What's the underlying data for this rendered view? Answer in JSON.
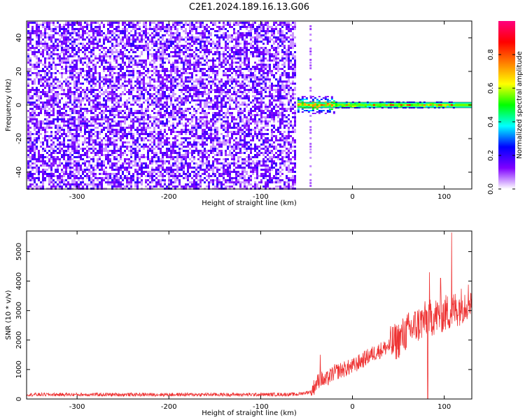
{
  "figure": {
    "title": "C2E1.2024.189.16.13.G06"
  },
  "chart_data": [
    {
      "type": "heatmap",
      "title": "",
      "xlabel": "Height of straight line (km)",
      "ylabel": "Frequency (Hz)",
      "xlim": [
        -355,
        130
      ],
      "ylim": [
        -50,
        50
      ],
      "xticks": [
        -300,
        -200,
        -100,
        0,
        100
      ],
      "yticks": [
        -40,
        -20,
        0,
        20,
        40
      ],
      "colorbar": {
        "label": "Normalized spectral amplitude",
        "range": [
          0,
          1
        ],
        "ticks": [
          0.0,
          0.2,
          0.4,
          0.6,
          0.8
        ],
        "colormap": [
          "#ffffff",
          "#7f00ff",
          "#0000ff",
          "#00ffff",
          "#00ff00",
          "#ffff00",
          "#ff7f00",
          "#ff0000",
          "#ff007f"
        ]
      },
      "regions": [
        {
          "x_range": [
            -355,
            -62
          ],
          "description_type": "noise",
          "amplitude": 0.15
        },
        {
          "x_range": [
            -60,
            110
          ],
          "description_type": "signal",
          "frequency": 0,
          "peak_amplitude": 0.9
        }
      ]
    },
    {
      "type": "line",
      "title": "",
      "xlabel": "Height of straight line (km)",
      "ylabel": "SNR (10 * v/v)",
      "xlim": [
        -355,
        130
      ],
      "ylim": [
        0,
        5700
      ],
      "xticks": [
        -300,
        -200,
        -100,
        0,
        100
      ],
      "yticks": [
        0,
        1000,
        2000,
        3000,
        4000,
        5000
      ],
      "color": "#ee3333",
      "series": [
        {
          "x": [
            -355,
            -300,
            -250,
            -200,
            -150,
            -100,
            -60,
            -45,
            -40,
            -35,
            -30,
            -20,
            -10,
            0,
            10,
            20,
            30,
            40,
            50,
            60,
            70,
            80,
            90,
            100,
            110,
            120,
            130
          ],
          "values": [
            150,
            150,
            150,
            150,
            150,
            150,
            160,
            250,
            500,
            700,
            600,
            900,
            1000,
            1100,
            1300,
            1500,
            1650,
            1800,
            2000,
            2300,
            2500,
            2700,
            2800,
            2900,
            3000,
            3200,
            3450
          ]
        }
      ],
      "spikes": [
        {
          "x": 84,
          "y": 4300
        },
        {
          "x": 96,
          "y": 4100
        },
        {
          "x": 108,
          "y": 5650
        },
        {
          "x": 82,
          "y": 0
        },
        {
          "x": -35,
          "y": 1500
        }
      ]
    }
  ]
}
